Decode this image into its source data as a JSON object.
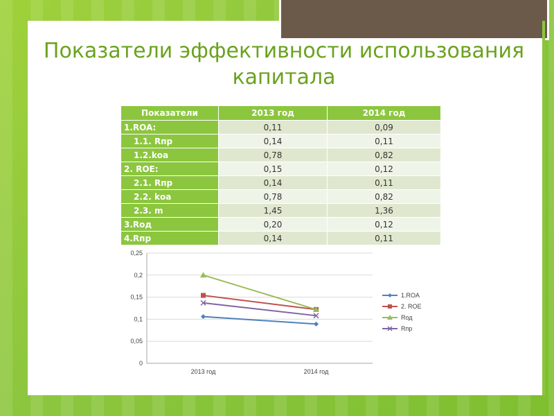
{
  "slide": {
    "title": "Показатели эффективности использования капитала"
  },
  "table": {
    "headers": [
      "Показатели",
      "2013 год",
      "2014 год"
    ],
    "rows": [
      {
        "label": "1.ROA:",
        "indent": false,
        "v2013": "0,11",
        "v2014": "0,09"
      },
      {
        "label": "1.1. Rпр",
        "indent": true,
        "v2013": "0,14",
        "v2014": "0,11"
      },
      {
        "label": "1.2.kоа",
        "indent": true,
        "v2013": "0,78",
        "v2014": "0,82"
      },
      {
        "label": "2. ROE:",
        "indent": false,
        "v2013": "0,15",
        "v2014": "0,12"
      },
      {
        "label": "2.1. Rпр",
        "indent": true,
        "v2013": "0,14",
        "v2014": "0,11"
      },
      {
        "label": "2.2. kоа",
        "indent": true,
        "v2013": "0,78",
        "v2014": "0,82"
      },
      {
        "label": "2.3. m",
        "indent": true,
        "v2013": "1,45",
        "v2014": "1,36"
      },
      {
        "label": "3.Rод",
        "indent": false,
        "v2013": "0,20",
        "v2014": "0,12"
      },
      {
        "label": "4.Rпр",
        "indent": false,
        "v2013": "0,14",
        "v2014": "0,11"
      }
    ]
  },
  "chart_data": {
    "type": "line",
    "title": "",
    "xlabel": "",
    "ylabel": "",
    "categories": [
      "2013 год",
      "2014 год"
    ],
    "ylim": [
      0,
      0.25
    ],
    "yticks": [
      "0,25",
      "0,2",
      "0,15",
      "0,1",
      "0,05",
      "0"
    ],
    "yticks_values": [
      0.25,
      0.2,
      0.15,
      0.1,
      0.05,
      0
    ],
    "grid": true,
    "legend_position": "right",
    "series": [
      {
        "name": "1.ROA",
        "values": [
          0.106,
          0.089
        ],
        "color": "#4f81bd",
        "marker": "diamond"
      },
      {
        "name": "2. ROE",
        "values": [
          0.154,
          0.122
        ],
        "color": "#c0504d",
        "marker": "square"
      },
      {
        "name": "Rод",
        "values": [
          0.2,
          0.122
        ],
        "color": "#9bbb59",
        "marker": "triangle"
      },
      {
        "name": "Rпр",
        "values": [
          0.137,
          0.108
        ],
        "color": "#8064a2",
        "marker": "x"
      }
    ]
  }
}
